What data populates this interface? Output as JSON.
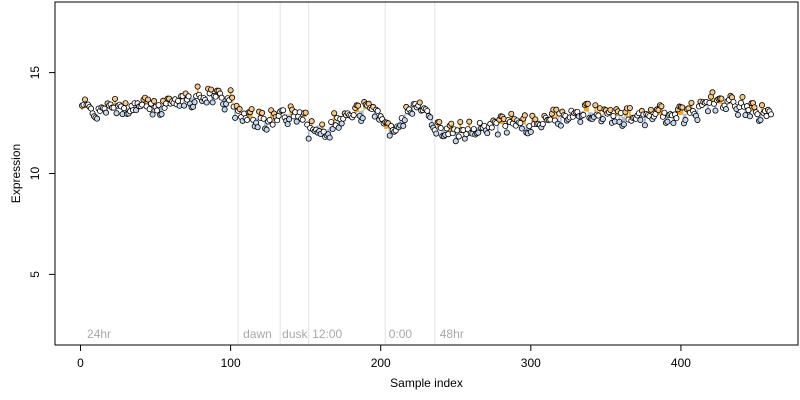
{
  "chart_data": {
    "type": "scatter",
    "title": "",
    "xlabel": "Sample index",
    "ylabel": "Expression",
    "xlim": [
      -17,
      478
    ],
    "ylim": [
      1.5,
      18.5
    ],
    "xticks": [
      0,
      100,
      200,
      300,
      400
    ],
    "yticks": [
      5,
      10,
      15
    ],
    "grid": false,
    "legend": "none",
    "colors": {
      "point_edge": "#000000",
      "blue_fill": "#c6d8ef",
      "orange_fill": "#f7c98a",
      "neutral_fill": "#ffffff",
      "blue_stem": "#a6bddb",
      "orange_stem": "#f5a623",
      "vline": "#e3e3e3",
      "annotation": "#a8a8a8"
    },
    "vlines": [
      105,
      133,
      152,
      203,
      236
    ],
    "annotations": [
      {
        "text": "24hr",
        "x": 3
      },
      {
        "text": "dawn",
        "x": 107
      },
      {
        "text": "dusk",
        "x": 133
      },
      {
        "text": "12:00",
        "x": 153
      },
      {
        "text": "0:00",
        "x": 204
      },
      {
        "text": "48hr",
        "x": 238
      }
    ],
    "anchors": [
      [
        0,
        13.1
      ],
      [
        5,
        13.4
      ],
      [
        10,
        12.9
      ],
      [
        15,
        13.2
      ],
      [
        20,
        13.3
      ],
      [
        30,
        13.2
      ],
      [
        40,
        13.4
      ],
      [
        50,
        13.3
      ],
      [
        60,
        13.5
      ],
      [
        70,
        13.7
      ],
      [
        80,
        13.8
      ],
      [
        90,
        13.9
      ],
      [
        100,
        13.6
      ],
      [
        105,
        13.0
      ],
      [
        110,
        12.8
      ],
      [
        120,
        12.7
      ],
      [
        130,
        12.6
      ],
      [
        133,
        13.0
      ],
      [
        140,
        12.9
      ],
      [
        150,
        12.8
      ],
      [
        152,
        12.1
      ],
      [
        158,
        12.4
      ],
      [
        163,
        12.0
      ],
      [
        168,
        12.5
      ],
      [
        180,
        12.9
      ],
      [
        190,
        13.2
      ],
      [
        200,
        13.0
      ],
      [
        203,
        12.2
      ],
      [
        210,
        12.3
      ],
      [
        220,
        13.4
      ],
      [
        228,
        13.2
      ],
      [
        233,
        13.0
      ],
      [
        236,
        12.3
      ],
      [
        245,
        12.1
      ],
      [
        255,
        12.0
      ],
      [
        265,
        12.3
      ],
      [
        275,
        12.4
      ],
      [
        285,
        12.5
      ],
      [
        300,
        12.4
      ],
      [
        320,
        12.8
      ],
      [
        335,
        13.1
      ],
      [
        350,
        12.9
      ],
      [
        365,
        12.8
      ],
      [
        380,
        12.9
      ],
      [
        400,
        12.9
      ],
      [
        410,
        13.1
      ],
      [
        420,
        13.6
      ],
      [
        428,
        13.4
      ],
      [
        435,
        13.5
      ],
      [
        445,
        13.1
      ],
      [
        455,
        13.0
      ],
      [
        460,
        12.9
      ]
    ]
  }
}
